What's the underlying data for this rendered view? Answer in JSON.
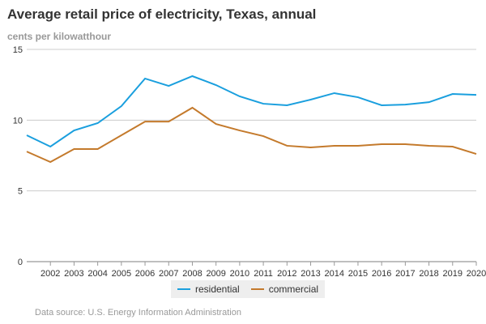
{
  "chart_data": {
    "type": "line",
    "title": "Average retail price of electricity, Texas, annual",
    "subtitle": "cents per kilowatthour",
    "x": [
      2001,
      2002,
      2003,
      2004,
      2005,
      2006,
      2007,
      2008,
      2009,
      2010,
      2011,
      2012,
      2013,
      2014,
      2015,
      2016,
      2017,
      2018,
      2019,
      2020
    ],
    "x_tick_labels": [
      "2002",
      "2003",
      "2004",
      "2005",
      "2006",
      "2007",
      "2008",
      "2009",
      "2010",
      "2011",
      "2012",
      "2013",
      "2014",
      "2015",
      "2016",
      "2017",
      "2018",
      "2019",
      "2020"
    ],
    "y_ticks": [
      0,
      5,
      10,
      15
    ],
    "ylim": [
      0,
      15
    ],
    "grid": true,
    "legend_position": "bottom",
    "series": [
      {
        "name": "residential",
        "color": "#1a9fde",
        "values": [
          8.93,
          8.13,
          9.27,
          9.79,
          10.99,
          12.94,
          12.42,
          13.11,
          12.48,
          11.68,
          11.16,
          11.05,
          11.45,
          11.91,
          11.62,
          11.05,
          11.1,
          11.27,
          11.85,
          11.79
        ]
      },
      {
        "name": "commercial",
        "color": "#c47a2c",
        "values": [
          7.78,
          7.04,
          7.96,
          7.96,
          8.93,
          9.9,
          9.9,
          10.88,
          9.73,
          9.27,
          8.87,
          8.19,
          8.07,
          8.19,
          8.19,
          8.3,
          8.3,
          8.19,
          8.13,
          7.61
        ]
      }
    ],
    "source": "Data source: U.S. Energy Information Administration"
  }
}
